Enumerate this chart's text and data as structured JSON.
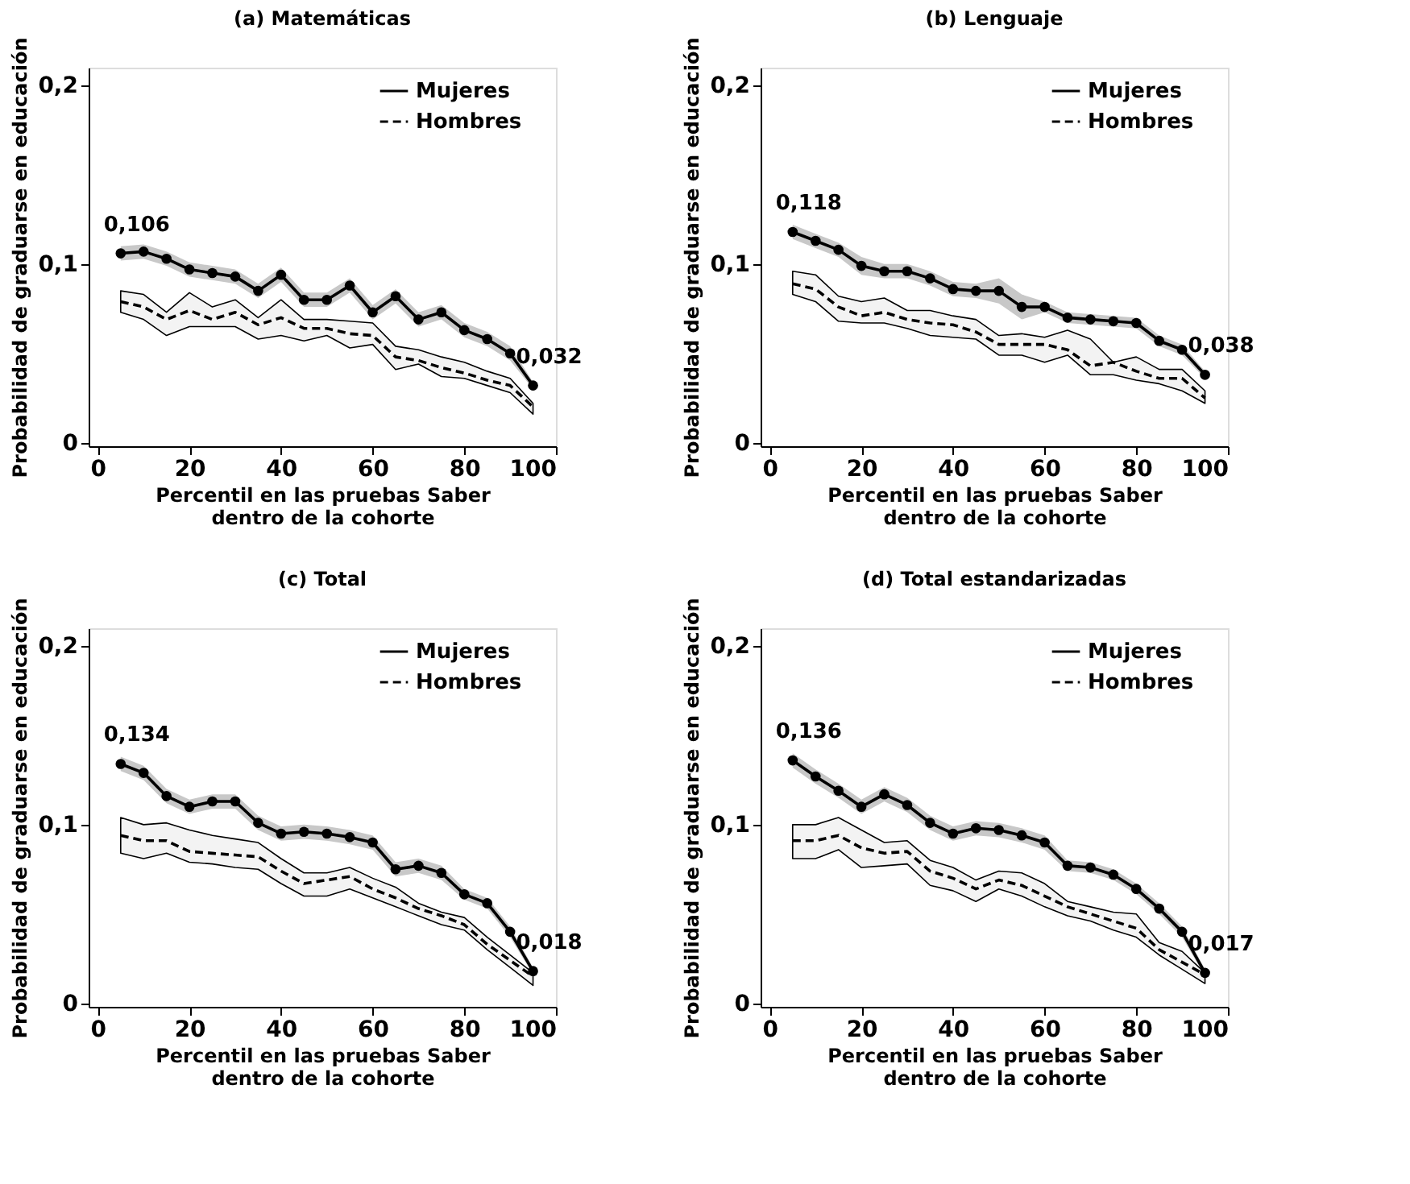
{
  "chart_data": [
    {
      "type": "line",
      "title": "(a) Matemáticas",
      "xlabel": "Percentil en las pruebas Saber\ndentro de la cohorte",
      "ylabel": "Probabilidad de graduarse en educación",
      "x": [
        5,
        10,
        15,
        20,
        25,
        30,
        35,
        40,
        45,
        50,
        55,
        60,
        65,
        70,
        75,
        80,
        85,
        90,
        95
      ],
      "series": [
        {
          "name": "Mujeres",
          "color": "#000000",
          "marker": "circle",
          "line_style": "solid",
          "value_labels": [
            "0,106",
            null,
            null,
            null,
            null,
            null,
            null,
            null,
            null,
            null,
            null,
            null,
            null,
            null,
            null,
            null,
            null,
            null,
            "0,032"
          ],
          "values": [
            0.106,
            0.107,
            0.103,
            0.097,
            0.095,
            0.093,
            0.085,
            0.094,
            0.08,
            0.08,
            0.088,
            0.073,
            0.082,
            0.069,
            0.073,
            0.063,
            0.058,
            0.05,
            0.032
          ],
          "lower": [
            0.102,
            0.103,
            0.099,
            0.093,
            0.091,
            0.089,
            0.081,
            0.09,
            0.076,
            0.076,
            0.084,
            0.069,
            0.078,
            0.065,
            0.069,
            0.059,
            0.054,
            0.046,
            0.03
          ],
          "upper": [
            0.11,
            0.111,
            0.107,
            0.101,
            0.099,
            0.097,
            0.089,
            0.098,
            0.084,
            0.084,
            0.092,
            0.077,
            0.086,
            0.073,
            0.077,
            0.067,
            0.062,
            0.054,
            0.034
          ]
        },
        {
          "name": "Hombres",
          "color": "#000000",
          "marker": "none",
          "line_style": "dashed",
          "values": [
            0.079,
            0.076,
            0.069,
            0.074,
            0.069,
            0.073,
            0.066,
            0.07,
            0.064,
            0.064,
            0.061,
            0.06,
            0.048,
            0.046,
            0.042,
            0.039,
            0.035,
            0.032,
            0.02
          ],
          "lower": [
            0.073,
            0.069,
            0.06,
            0.065,
            0.065,
            0.065,
            0.058,
            0.06,
            0.057,
            0.06,
            0.053,
            0.055,
            0.041,
            0.044,
            0.037,
            0.036,
            0.032,
            0.028,
            0.016
          ],
          "upper": [
            0.085,
            0.083,
            0.073,
            0.084,
            0.076,
            0.08,
            0.07,
            0.08,
            0.069,
            0.069,
            0.068,
            0.067,
            0.054,
            0.052,
            0.048,
            0.045,
            0.04,
            0.036,
            0.022
          ]
        }
      ],
      "xlim": [
        -2,
        100
      ],
      "ylim": [
        -0.002,
        0.21
      ],
      "xticks": [
        0,
        20,
        40,
        60,
        80,
        100
      ],
      "yticks": [
        {
          "value": 0,
          "label": "0"
        },
        {
          "value": 0.1,
          "label": "0,1"
        },
        {
          "value": 0.2,
          "label": "0,2"
        }
      ],
      "legend": "top right"
    },
    {
      "type": "line",
      "title": "(b) Lenguaje",
      "xlabel": "Percentil en las pruebas Saber\ndentro de la cohorte",
      "ylabel": "Probabilidad de graduarse en educación",
      "x": [
        5,
        10,
        15,
        20,
        25,
        30,
        35,
        40,
        45,
        50,
        55,
        60,
        65,
        70,
        75,
        80,
        85,
        90,
        95
      ],
      "series": [
        {
          "name": "Mujeres",
          "color": "#000000",
          "marker": "circle",
          "line_style": "solid",
          "value_labels": [
            "0,118",
            null,
            null,
            null,
            null,
            null,
            null,
            null,
            null,
            null,
            null,
            null,
            null,
            null,
            null,
            null,
            null,
            null,
            "0,038"
          ],
          "values": [
            0.118,
            0.113,
            0.108,
            0.099,
            0.096,
            0.096,
            0.092,
            0.086,
            0.085,
            0.085,
            0.076,
            0.076,
            0.07,
            0.069,
            0.068,
            0.067,
            0.057,
            0.052,
            0.038
          ],
          "lower": [
            0.114,
            0.109,
            0.104,
            0.094,
            0.092,
            0.092,
            0.088,
            0.082,
            0.081,
            0.078,
            0.069,
            0.073,
            0.067,
            0.066,
            0.065,
            0.064,
            0.054,
            0.049,
            0.036
          ],
          "upper": [
            0.122,
            0.117,
            0.112,
            0.104,
            0.1,
            0.1,
            0.096,
            0.09,
            0.089,
            0.092,
            0.083,
            0.079,
            0.073,
            0.072,
            0.071,
            0.07,
            0.06,
            0.055,
            0.04
          ]
        },
        {
          "name": "Hombres",
          "color": "#000000",
          "marker": "none",
          "line_style": "dashed",
          "values": [
            0.089,
            0.086,
            0.076,
            0.071,
            0.073,
            0.069,
            0.067,
            0.066,
            0.062,
            0.055,
            0.055,
            0.055,
            0.052,
            0.043,
            0.045,
            0.04,
            0.036,
            0.036,
            0.025
          ],
          "lower": [
            0.083,
            0.079,
            0.068,
            0.067,
            0.067,
            0.064,
            0.06,
            0.059,
            0.058,
            0.049,
            0.049,
            0.045,
            0.049,
            0.038,
            0.038,
            0.035,
            0.033,
            0.029,
            0.022
          ],
          "upper": [
            0.096,
            0.094,
            0.082,
            0.079,
            0.081,
            0.074,
            0.074,
            0.071,
            0.069,
            0.06,
            0.061,
            0.059,
            0.063,
            0.058,
            0.045,
            0.048,
            0.041,
            0.041,
            0.029
          ]
        }
      ],
      "xlim": [
        -2,
        100
      ],
      "ylim": [
        -0.002,
        0.21
      ],
      "xticks": [
        0,
        20,
        40,
        60,
        80,
        100
      ],
      "yticks": [
        {
          "value": 0,
          "label": "0"
        },
        {
          "value": 0.1,
          "label": "0,1"
        },
        {
          "value": 0.2,
          "label": "0,2"
        }
      ],
      "legend": "top right"
    },
    {
      "type": "line",
      "title": "(c) Total",
      "xlabel": "Percentil en las pruebas Saber\ndentro de la cohorte",
      "ylabel": "Probabilidad de graduarse en educación",
      "x": [
        5,
        10,
        15,
        20,
        25,
        30,
        35,
        40,
        45,
        50,
        55,
        60,
        65,
        70,
        75,
        80,
        85,
        90,
        95
      ],
      "series": [
        {
          "name": "Mujeres",
          "color": "#000000",
          "marker": "circle",
          "line_style": "solid",
          "value_labels": [
            "0,134",
            null,
            null,
            null,
            null,
            null,
            null,
            null,
            null,
            null,
            null,
            null,
            null,
            null,
            null,
            null,
            null,
            null,
            "0,018"
          ],
          "values": [
            0.134,
            0.129,
            0.116,
            0.11,
            0.113,
            0.113,
            0.101,
            0.095,
            0.096,
            0.095,
            0.093,
            0.09,
            0.075,
            0.077,
            0.073,
            0.061,
            0.056,
            0.04,
            0.018
          ],
          "lower": [
            0.13,
            0.125,
            0.112,
            0.106,
            0.109,
            0.109,
            0.097,
            0.091,
            0.092,
            0.091,
            0.089,
            0.086,
            0.071,
            0.073,
            0.069,
            0.058,
            0.053,
            0.037,
            0.016
          ],
          "upper": [
            0.138,
            0.133,
            0.12,
            0.114,
            0.117,
            0.117,
            0.105,
            0.099,
            0.1,
            0.099,
            0.097,
            0.094,
            0.079,
            0.081,
            0.077,
            0.064,
            0.059,
            0.043,
            0.02
          ]
        },
        {
          "name": "Hombres",
          "color": "#000000",
          "marker": "none",
          "line_style": "dashed",
          "values": [
            0.094,
            0.091,
            0.091,
            0.085,
            0.084,
            0.083,
            0.082,
            0.074,
            0.067,
            0.069,
            0.071,
            0.064,
            0.059,
            0.053,
            0.049,
            0.044,
            0.033,
            0.024,
            0.015
          ],
          "lower": [
            0.084,
            0.081,
            0.084,
            0.079,
            0.078,
            0.076,
            0.075,
            0.067,
            0.06,
            0.06,
            0.064,
            0.059,
            0.054,
            0.049,
            0.044,
            0.041,
            0.03,
            0.02,
            0.01
          ],
          "upper": [
            0.104,
            0.1,
            0.101,
            0.097,
            0.094,
            0.092,
            0.09,
            0.081,
            0.073,
            0.073,
            0.076,
            0.07,
            0.065,
            0.056,
            0.051,
            0.048,
            0.037,
            0.027,
            0.017
          ]
        }
      ],
      "xlim": [
        -2,
        100
      ],
      "ylim": [
        -0.002,
        0.21
      ],
      "xticks": [
        0,
        20,
        40,
        60,
        80,
        100
      ],
      "yticks": [
        {
          "value": 0,
          "label": "0"
        },
        {
          "value": 0.1,
          "label": "0,1"
        },
        {
          "value": 0.2,
          "label": "0,2"
        }
      ],
      "legend": "top right"
    },
    {
      "type": "line",
      "title": "(d) Total estandarizadas",
      "xlabel": "Percentil en las pruebas Saber\ndentro de la cohorte",
      "ylabel": "Probabilidad de graduarse en educación",
      "x": [
        5,
        10,
        15,
        20,
        25,
        30,
        35,
        40,
        45,
        50,
        55,
        60,
        65,
        70,
        75,
        80,
        85,
        90,
        95
      ],
      "series": [
        {
          "name": "Mujeres",
          "color": "#000000",
          "marker": "circle",
          "line_style": "solid",
          "value_labels": [
            "0,136",
            null,
            null,
            null,
            null,
            null,
            null,
            null,
            null,
            null,
            null,
            null,
            null,
            null,
            null,
            null,
            null,
            null,
            "0,017"
          ],
          "values": [
            0.136,
            0.127,
            0.119,
            0.11,
            0.117,
            0.111,
            0.101,
            0.095,
            0.098,
            0.097,
            0.094,
            0.09,
            0.077,
            0.076,
            0.072,
            0.064,
            0.053,
            0.04,
            0.017
          ],
          "lower": [
            0.132,
            0.123,
            0.115,
            0.106,
            0.113,
            0.107,
            0.097,
            0.091,
            0.094,
            0.093,
            0.09,
            0.086,
            0.074,
            0.073,
            0.069,
            0.061,
            0.05,
            0.037,
            0.015
          ],
          "upper": [
            0.14,
            0.131,
            0.123,
            0.114,
            0.121,
            0.115,
            0.105,
            0.099,
            0.102,
            0.101,
            0.098,
            0.094,
            0.08,
            0.079,
            0.075,
            0.067,
            0.056,
            0.043,
            0.019
          ]
        },
        {
          "name": "Hombres",
          "color": "#000000",
          "marker": "none",
          "line_style": "dashed",
          "values": [
            0.091,
            0.091,
            0.094,
            0.087,
            0.084,
            0.085,
            0.074,
            0.07,
            0.064,
            0.069,
            0.066,
            0.06,
            0.054,
            0.05,
            0.046,
            0.042,
            0.03,
            0.023,
            0.016
          ],
          "lower": [
            0.081,
            0.081,
            0.086,
            0.076,
            0.077,
            0.078,
            0.066,
            0.063,
            0.057,
            0.064,
            0.06,
            0.054,
            0.049,
            0.046,
            0.041,
            0.037,
            0.027,
            0.019,
            0.011
          ],
          "upper": [
            0.1,
            0.1,
            0.104,
            0.097,
            0.09,
            0.091,
            0.08,
            0.076,
            0.069,
            0.074,
            0.073,
            0.067,
            0.057,
            0.054,
            0.051,
            0.05,
            0.034,
            0.029,
            0.017
          ]
        }
      ],
      "xlim": [
        -2,
        100
      ],
      "ylim": [
        -0.002,
        0.21
      ],
      "xticks": [
        0,
        20,
        40,
        60,
        80,
        100
      ],
      "yticks": [
        {
          "value": 0,
          "label": "0"
        },
        {
          "value": 0.1,
          "label": "0,1"
        },
        {
          "value": 0.2,
          "label": "0,2"
        }
      ],
      "legend": "top right"
    }
  ]
}
